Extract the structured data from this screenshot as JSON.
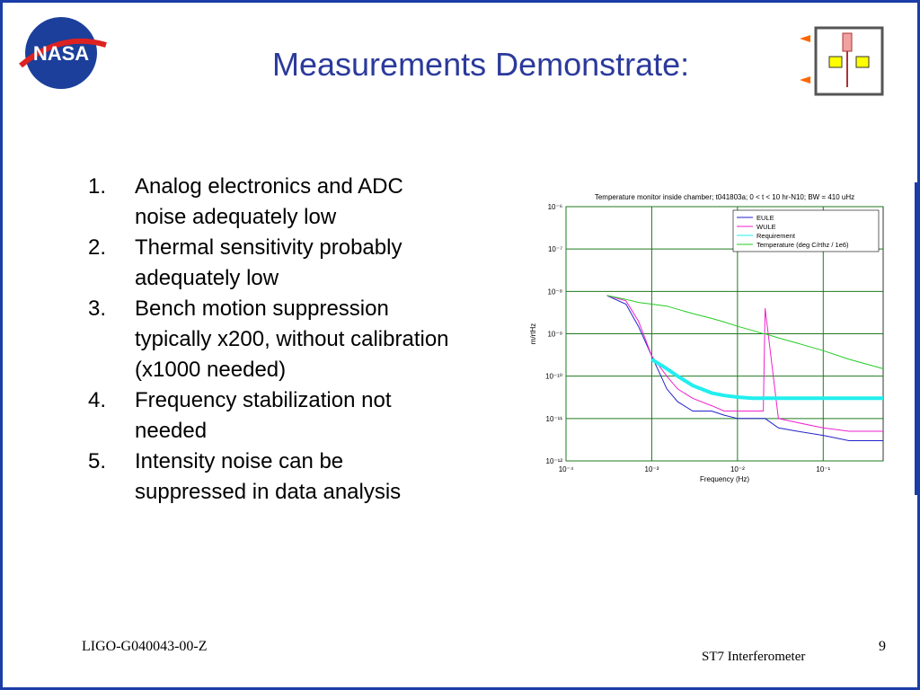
{
  "header": {
    "title": "Measurements Demonstrate:",
    "logo_text": "NASA"
  },
  "list": {
    "items": [
      {
        "number": "1.",
        "lines": [
          "Analog electronics and ADC",
          "noise adequately low"
        ]
      },
      {
        "number": "2.",
        "lines": [
          "Thermal sensitivity probably",
          "adequately low"
        ]
      },
      {
        "number": "3.",
        "lines": [
          "Bench motion suppression",
          "typically x200, without calibration",
          "(x1000 needed)"
        ]
      },
      {
        "number": "4.",
        "lines": [
          "Frequency stabilization not",
          "needed"
        ]
      },
      {
        "number": "5.",
        "lines": [
          "Intensity noise can be",
          "suppressed in data analysis"
        ]
      }
    ]
  },
  "footer": {
    "left": "LIGO-G040043-00-Z",
    "center": "ST7  Interferometer",
    "page": "9"
  },
  "chart_data": {
    "type": "line",
    "title": "Temperature monitor inside chamber; t041803a; 0 < t < 10 hr-N10; BW = 410 uHz",
    "x_label": "Frequency (Hz)",
    "y_label": "m/rtHz",
    "log_x": true,
    "log_y": true,
    "grid": true,
    "legend": "upper right",
    "xlim": [
      0.0001,
      0.5
    ],
    "ylim": [
      1e-12,
      1e-06
    ],
    "xticks": [
      {
        "value": 0.0001,
        "label": "10⁻⁴"
      },
      {
        "value": 0.001,
        "label": "10⁻³"
      },
      {
        "value": 0.01,
        "label": "10⁻²"
      },
      {
        "value": 0.1,
        "label": "10⁻¹"
      }
    ],
    "yticks": [
      {
        "value": 1e-12,
        "label": "10⁻¹²"
      },
      {
        "value": 1e-11,
        "label": "10⁻¹¹"
      },
      {
        "value": 1e-10,
        "label": "10⁻¹⁰"
      },
      {
        "value": 1e-09,
        "label": "10⁻⁹"
      },
      {
        "value": 1e-08,
        "label": "10⁻⁸"
      },
      {
        "value": 1e-07,
        "label": "10⁻⁷"
      },
      {
        "value": 1e-06,
        "label": "10⁻⁶"
      }
    ],
    "x": [
      0.0003,
      0.0005,
      0.0007,
      0.001,
      0.0015,
      0.002,
      0.003,
      0.005,
      0.007,
      0.01,
      0.015,
      0.02,
      0.021,
      0.03,
      0.05,
      0.1,
      0.2,
      0.5
    ],
    "series": [
      {
        "name": "EULE",
        "color": "#2222cc",
        "values": [
          8e-09,
          5e-09,
          1.5e-09,
          3e-10,
          5e-11,
          2.5e-11,
          1.5e-11,
          1.5e-11,
          1.2e-11,
          1e-11,
          1e-11,
          1e-11,
          1e-11,
          6e-12,
          5e-12,
          4e-12,
          3e-12,
          3e-12
        ]
      },
      {
        "name": "WULE",
        "color": "#ee22cc",
        "values": [
          8e-09,
          6e-09,
          2e-09,
          3e-10,
          1e-10,
          5e-11,
          3e-11,
          2e-11,
          1.5e-11,
          1.5e-11,
          1.5e-11,
          1.5e-11,
          4e-09,
          1e-11,
          8e-12,
          6e-12,
          5e-12,
          5e-12
        ]
      },
      {
        "name": "Requirement",
        "color": "#22eeee",
        "values": [
          null,
          null,
          null,
          2.5e-10,
          1.5e-10,
          1e-10,
          6e-11,
          4e-11,
          3.5e-11,
          3.2e-11,
          3e-11,
          3e-11,
          3e-11,
          3e-11,
          3e-11,
          3e-11,
          3e-11,
          3e-11
        ]
      },
      {
        "name": "Temperature  (deg C/rthz / 1e6)",
        "color": "#22cc22",
        "values": [
          8e-09,
          6.5e-09,
          5.5e-09,
          5e-09,
          4.5e-09,
          3.8e-09,
          3e-09,
          2.3e-09,
          1.9e-09,
          1.5e-09,
          1.2e-09,
          1e-09,
          1e-09,
          8e-10,
          6e-10,
          4e-10,
          2.5e-10,
          1.5e-10
        ]
      }
    ]
  }
}
